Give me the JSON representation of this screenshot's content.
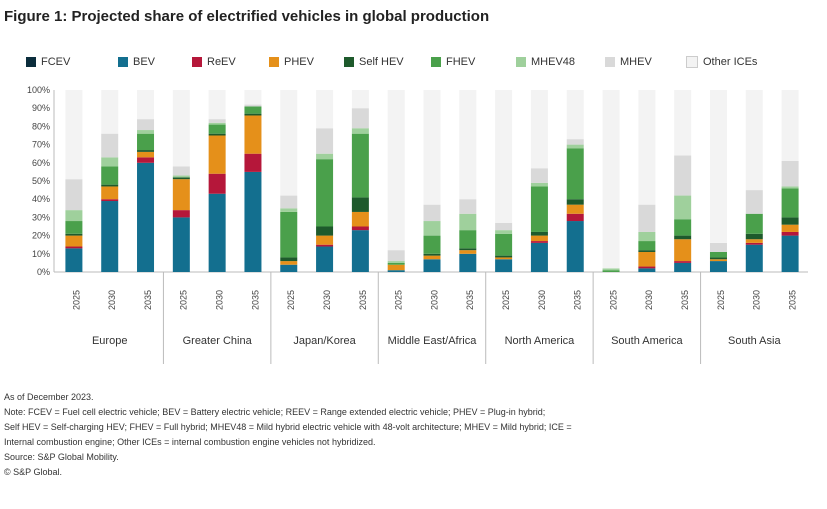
{
  "title": "Figure 1: Projected share of electrified vehicles in global production",
  "legend": [
    {
      "key": "fcev",
      "label": "FCEV",
      "color": "#0b2d3c"
    },
    {
      "key": "bev",
      "label": "BEV",
      "color": "#136f8f"
    },
    {
      "key": "rebev",
      "label": "ReEV",
      "color": "#b5173a"
    },
    {
      "key": "phev",
      "label": "PHEV",
      "color": "#e5901a"
    },
    {
      "key": "sehev",
      "label": "Self HEV",
      "color": "#1e5a2c"
    },
    {
      "key": "fhev",
      "label": "FHEV",
      "color": "#4aa04b"
    },
    {
      "key": "mhev48",
      "label": "MHEV48",
      "color": "#9fd09c"
    },
    {
      "key": "mhev",
      "label": "MHEV",
      "color": "#d9d9d9"
    },
    {
      "key": "ice",
      "label": "Other ICEs",
      "color": "#f3f3f3"
    }
  ],
  "chart_data": {
    "type": "bar",
    "stacked": true,
    "title": "Figure 1: Projected share of electrified vehicles in global production",
    "ylim": [
      0,
      100
    ],
    "y_ticks": [
      "0%",
      "10%",
      "20%",
      "30%",
      "40%",
      "50%",
      "60%",
      "70%",
      "80%",
      "90%",
      "100%"
    ],
    "grid": false,
    "legend_position": "top",
    "groups": [
      {
        "name": "Europe",
        "years": [
          "2025",
          "2030",
          "2035"
        ]
      },
      {
        "name": "Greater China",
        "years": [
          "2025",
          "2030",
          "2035"
        ]
      },
      {
        "name": "Japan/Korea",
        "years": [
          "2025",
          "2030",
          "2035"
        ]
      },
      {
        "name": "Middle East/Africa",
        "years": [
          "2025",
          "2030",
          "2035"
        ]
      },
      {
        "name": "North America",
        "years": [
          "2025",
          "2030",
          "2035"
        ]
      },
      {
        "name": "South America",
        "years": [
          "2025",
          "2030",
          "2035"
        ]
      },
      {
        "name": "South Asia",
        "years": [
          "2025",
          "2030",
          "2035"
        ]
      }
    ],
    "series_order": [
      "fcev",
      "bev",
      "rebev",
      "phev",
      "sehev",
      "fhev",
      "mhev48",
      "mhev",
      "ice"
    ],
    "bars": [
      {
        "group": "Europe",
        "year": "2025",
        "values": {
          "fcev": 0,
          "bev": 13,
          "rebev": 1,
          "phev": 6,
          "sehev": 1,
          "fhev": 7,
          "mhev48": 6,
          "mhev": 17,
          "ice": 49
        }
      },
      {
        "group": "Europe",
        "year": "2030",
        "values": {
          "fcev": 0,
          "bev": 39,
          "rebev": 1,
          "phev": 7,
          "sehev": 1,
          "fhev": 10,
          "mhev48": 5,
          "mhev": 13,
          "ice": 24
        }
      },
      {
        "group": "Europe",
        "year": "2035",
        "values": {
          "fcev": 0,
          "bev": 60,
          "rebev": 3,
          "phev": 3,
          "sehev": 1,
          "fhev": 9,
          "mhev48": 2,
          "mhev": 6,
          "ice": 16
        }
      },
      {
        "group": "Greater China",
        "year": "2025",
        "values": {
          "fcev": 0,
          "bev": 30,
          "rebev": 4,
          "phev": 17,
          "sehev": 1,
          "fhev": 0,
          "mhev48": 1,
          "mhev": 5,
          "ice": 42
        }
      },
      {
        "group": "Greater China",
        "year": "2030",
        "values": {
          "fcev": 0,
          "bev": 43,
          "rebev": 11,
          "phev": 21,
          "sehev": 1,
          "fhev": 5,
          "mhev48": 1,
          "mhev": 2,
          "ice": 16
        }
      },
      {
        "group": "Greater China",
        "year": "2035",
        "values": {
          "fcev": 0,
          "bev": 55,
          "rebev": 10,
          "phev": 21,
          "sehev": 1,
          "fhev": 4,
          "mhev48": 0,
          "mhev": 1,
          "ice": 8
        }
      },
      {
        "group": "Japan/Korea",
        "year": "2025",
        "values": {
          "fcev": 0,
          "bev": 4,
          "rebev": 0,
          "phev": 2,
          "sehev": 2,
          "fhev": 25,
          "mhev48": 2,
          "mhev": 7,
          "ice": 58
        }
      },
      {
        "group": "Japan/Korea",
        "year": "2030",
        "values": {
          "fcev": 0,
          "bev": 14,
          "rebev": 1,
          "phev": 5,
          "sehev": 5,
          "fhev": 37,
          "mhev48": 3,
          "mhev": 14,
          "ice": 21
        }
      },
      {
        "group": "Japan/Korea",
        "year": "2035",
        "values": {
          "fcev": 0,
          "bev": 23,
          "rebev": 2,
          "phev": 8,
          "sehev": 8,
          "fhev": 35,
          "mhev48": 3,
          "mhev": 11,
          "ice": 10
        }
      },
      {
        "group": "Middle East/Africa",
        "year": "2025",
        "values": {
          "fcev": 0,
          "bev": 1,
          "rebev": 0,
          "phev": 3,
          "sehev": 0,
          "fhev": 1,
          "mhev48": 1,
          "mhev": 6,
          "ice": 88
        }
      },
      {
        "group": "Middle East/Africa",
        "year": "2030",
        "values": {
          "fcev": 0,
          "bev": 7,
          "rebev": 0,
          "phev": 2,
          "sehev": 1,
          "fhev": 10,
          "mhev48": 8,
          "mhev": 9,
          "ice": 63
        }
      },
      {
        "group": "Middle East/Africa",
        "year": "2035",
        "values": {
          "fcev": 0,
          "bev": 10,
          "rebev": 0,
          "phev": 2,
          "sehev": 1,
          "fhev": 10,
          "mhev48": 9,
          "mhev": 8,
          "ice": 60
        }
      },
      {
        "group": "North America",
        "year": "2025",
        "values": {
          "fcev": 0,
          "bev": 7,
          "rebev": 0,
          "phev": 1,
          "sehev": 1,
          "fhev": 12,
          "mhev48": 2,
          "mhev": 4,
          "ice": 73
        }
      },
      {
        "group": "North America",
        "year": "2030",
        "values": {
          "fcev": 0,
          "bev": 16,
          "rebev": 1,
          "phev": 3,
          "sehev": 2,
          "fhev": 25,
          "mhev48": 2,
          "mhev": 8,
          "ice": 43
        }
      },
      {
        "group": "North America",
        "year": "2035",
        "values": {
          "fcev": 0,
          "bev": 28,
          "rebev": 4,
          "phev": 5,
          "sehev": 3,
          "fhev": 28,
          "mhev48": 2,
          "mhev": 3,
          "ice": 27
        }
      },
      {
        "group": "South America",
        "year": "2025",
        "values": {
          "fcev": 0,
          "bev": 0,
          "rebev": 0,
          "phev": 0,
          "sehev": 0,
          "fhev": 1,
          "mhev48": 1,
          "mhev": 0,
          "ice": 98
        }
      },
      {
        "group": "South America",
        "year": "2030",
        "values": {
          "fcev": 0,
          "bev": 2,
          "rebev": 1,
          "phev": 8,
          "sehev": 1,
          "fhev": 5,
          "mhev48": 5,
          "mhev": 15,
          "ice": 63
        }
      },
      {
        "group": "South America",
        "year": "2035",
        "values": {
          "fcev": 0,
          "bev": 5,
          "rebev": 1,
          "phev": 12,
          "sehev": 2,
          "fhev": 9,
          "mhev48": 13,
          "mhev": 22,
          "ice": 36
        }
      },
      {
        "group": "South Asia",
        "year": "2025",
        "values": {
          "fcev": 0,
          "bev": 6,
          "rebev": 0,
          "phev": 1,
          "sehev": 1,
          "fhev": 3,
          "mhev48": 0,
          "mhev": 5,
          "ice": 84
        }
      },
      {
        "group": "South Asia",
        "year": "2030",
        "values": {
          "fcev": 0,
          "bev": 15,
          "rebev": 1,
          "phev": 2,
          "sehev": 3,
          "fhev": 11,
          "mhev48": 0,
          "mhev": 13,
          "ice": 55
        }
      },
      {
        "group": "South Asia",
        "year": "2035",
        "values": {
          "fcev": 0,
          "bev": 20,
          "rebev": 2,
          "phev": 4,
          "sehev": 4,
          "fhev": 16,
          "mhev48": 1,
          "mhev": 14,
          "ice": 39
        }
      }
    ]
  },
  "notes": [
    "As of December 2023.",
    "Note: FCEV = Fuel cell electric vehicle; BEV = Battery electric vehicle; REEV = Range extended electric vehicle; PHEV = Plug-in hybrid;",
    "Self HEV = Self-charging HEV; FHEV = Full hybrid; MHEV48 = Mild hybrid electric vehicle with 48-volt architecture; MHEV = Mild hybrid; ICE =",
    "Internal combustion engine; Other ICEs = internal combustion engine vehicles not hybridized.",
    "Source: S&P Global Mobility.",
    "© S&P Global."
  ]
}
